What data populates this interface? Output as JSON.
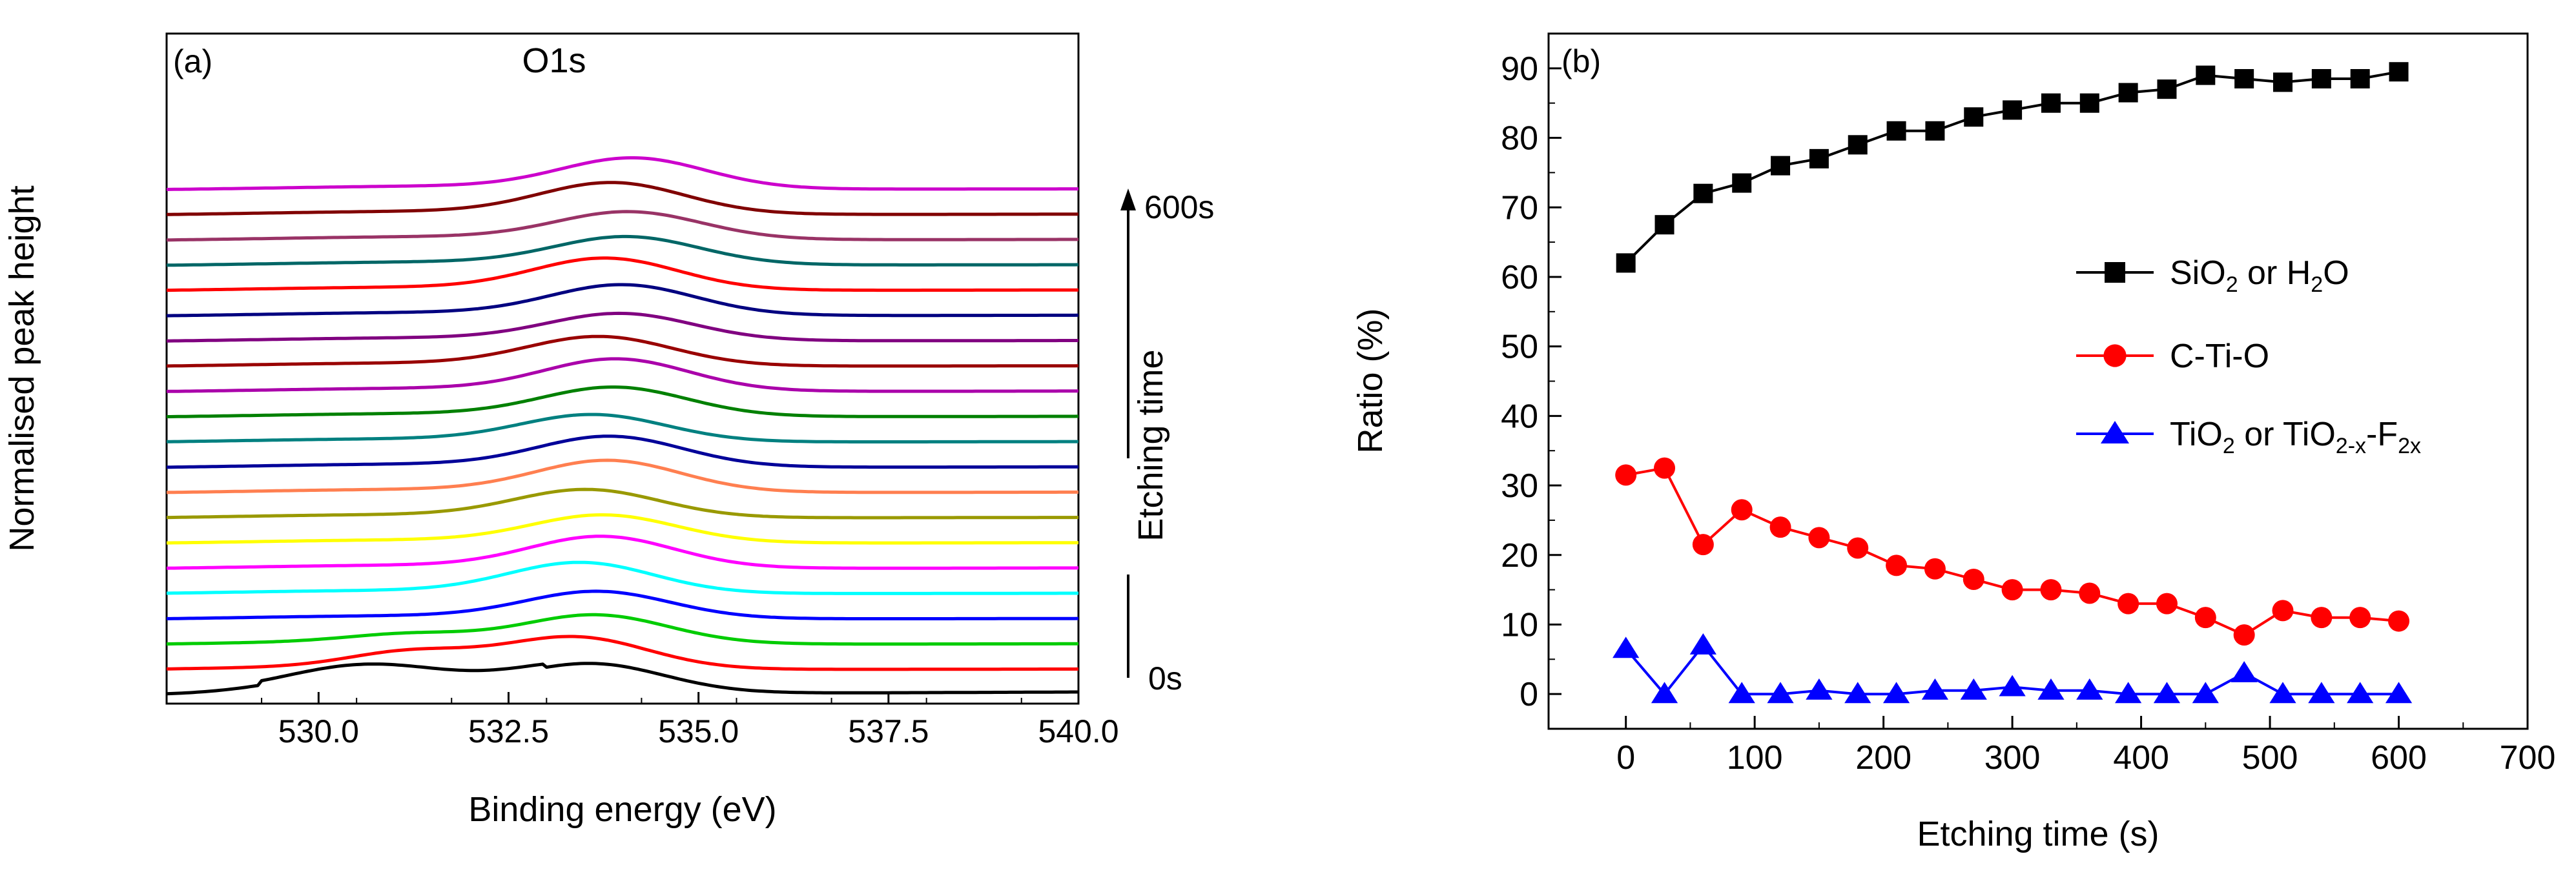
{
  "chart_data": [
    {
      "type": "line",
      "panel": "(a)",
      "title": "O1s",
      "xlabel": "Binding energy (eV)",
      "ylabel": "Normalised peak height",
      "xlim": [
        528,
        540
      ],
      "x_ticks": [
        "530.0",
        "532.5",
        "535.0",
        "537.5",
        "540.0"
      ],
      "x_tick_values": [
        530.0,
        532.5,
        535.0,
        537.5,
        540.0
      ],
      "arrow_label": "Etching time",
      "arrow_start": "0s",
      "arrow_end": "600s",
      "spectra_count": 21,
      "spectra_colors": [
        "#000000",
        "#ff0000",
        "#00cc00",
        "#0000ff",
        "#00ffff",
        "#ff00ff",
        "#ffff00",
        "#999900",
        "#ff7f50",
        "#000099",
        "#008080",
        "#008000",
        "#aa00aa",
        "#990000",
        "#800080",
        "#000080",
        "#ff0000",
        "#006666",
        "#993366",
        "#800000",
        "#cc00cc"
      ]
    },
    {
      "type": "line",
      "panel": "(b)",
      "xlabel": "Etching time (s)",
      "ylabel": "Ratio (%)",
      "xlim": [
        -60,
        700
      ],
      "ylim": [
        -5,
        95
      ],
      "x_ticks": [
        "0",
        "100",
        "200",
        "300",
        "400",
        "500",
        "600",
        "700"
      ],
      "x_tick_values": [
        0,
        100,
        200,
        300,
        400,
        500,
        600,
        700
      ],
      "y_ticks": [
        "0",
        "10",
        "20",
        "30",
        "40",
        "50",
        "60",
        "70",
        "80",
        "90"
      ],
      "y_tick_values": [
        0,
        10,
        20,
        30,
        40,
        50,
        60,
        70,
        80,
        90
      ],
      "x": [
        0,
        30,
        60,
        90,
        120,
        150,
        180,
        210,
        240,
        270,
        300,
        330,
        360,
        390,
        420,
        450,
        480,
        510,
        540,
        570,
        600
      ],
      "series": [
        {
          "name": "SiO2 or H2O",
          "legend_text": [
            {
              "t": "SiO",
              "sub": false
            },
            {
              "t": "2",
              "sub": true
            },
            {
              "t": " or H",
              "sub": false
            },
            {
              "t": "2",
              "sub": true
            },
            {
              "t": "O",
              "sub": false
            }
          ],
          "color": "#000000",
          "marker": "square",
          "values": [
            62,
            67.5,
            72,
            73.5,
            76,
            77,
            79,
            81,
            81,
            83,
            84,
            85,
            85,
            86.5,
            87,
            89,
            88.5,
            88,
            88.5,
            88.5,
            89.5
          ]
        },
        {
          "name": "C-Ti-O",
          "legend_text": [
            {
              "t": "C-Ti-O",
              "sub": false
            }
          ],
          "color": "#ff0000",
          "marker": "circle",
          "values": [
            31.5,
            32.5,
            21.5,
            26.5,
            24,
            22.5,
            21,
            18.5,
            18,
            16.5,
            15,
            15,
            14.5,
            13,
            13,
            11,
            8.5,
            12,
            11,
            11,
            10.5
          ]
        },
        {
          "name": "TiO2 or TiO2-x-F2x",
          "legend_text": [
            {
              "t": "TiO",
              "sub": false
            },
            {
              "t": "2",
              "sub": true
            },
            {
              "t": " or TiO",
              "sub": false
            },
            {
              "t": "2-x",
              "sub": true
            },
            {
              "t": "-F",
              "sub": false
            },
            {
              "t": "2x",
              "sub": true
            }
          ],
          "color": "#0000ff",
          "marker": "triangle",
          "values": [
            6.5,
            0,
            7,
            0,
            0,
            0.5,
            0,
            0,
            0.5,
            0.5,
            1,
            0.5,
            0.5,
            0,
            0,
            0,
            3,
            0,
            0,
            0,
            0
          ]
        }
      ]
    }
  ]
}
